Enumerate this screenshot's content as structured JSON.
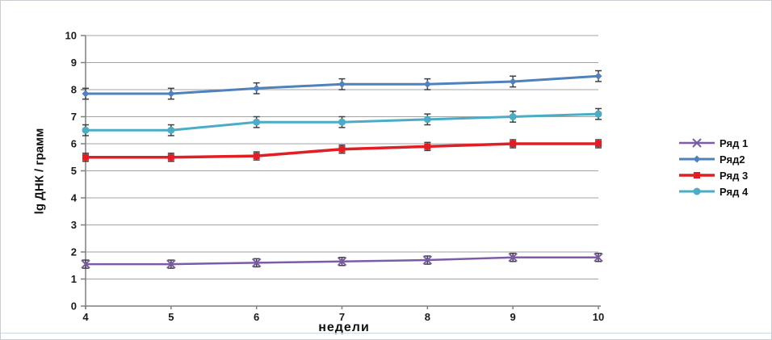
{
  "chart_data": {
    "type": "line",
    "title": "",
    "xlabel": "недели",
    "ylabel": "lg ДНК / грамм",
    "x": [
      4,
      5,
      6,
      7,
      8,
      9,
      10
    ],
    "ylim": [
      0,
      10
    ],
    "ytick_step": 1,
    "grid": true,
    "legend_position": "right",
    "series": [
      {
        "name": "Ряд 1",
        "color": "#7c5ca6",
        "marker": "x",
        "line_width": 2.5,
        "values": [
          1.55,
          1.55,
          1.6,
          1.65,
          1.7,
          1.8,
          1.8
        ],
        "error": 0.15
      },
      {
        "name": "Ряд2",
        "color": "#4f81bd",
        "marker": "diamond",
        "line_width": 3,
        "values": [
          7.85,
          7.85,
          8.05,
          8.2,
          8.2,
          8.3,
          8.5
        ],
        "error": 0.2
      },
      {
        "name": "Ряд 3",
        "color": "#e01e24",
        "marker": "square",
        "line_width": 3.5,
        "values": [
          5.5,
          5.5,
          5.55,
          5.8,
          5.9,
          6.0,
          6.0
        ],
        "error": 0.15
      },
      {
        "name": "Ряд 4",
        "color": "#4bacc6",
        "marker": "circle",
        "line_width": 3,
        "values": [
          6.5,
          6.5,
          6.8,
          6.8,
          6.9,
          7.0,
          7.1
        ],
        "error": 0.2
      }
    ],
    "colors": {
      "grid": "#a3a3a3",
      "axis": "#7f7f7f",
      "error_bar": "#404040",
      "tick_text": "#1a1a1a"
    }
  }
}
